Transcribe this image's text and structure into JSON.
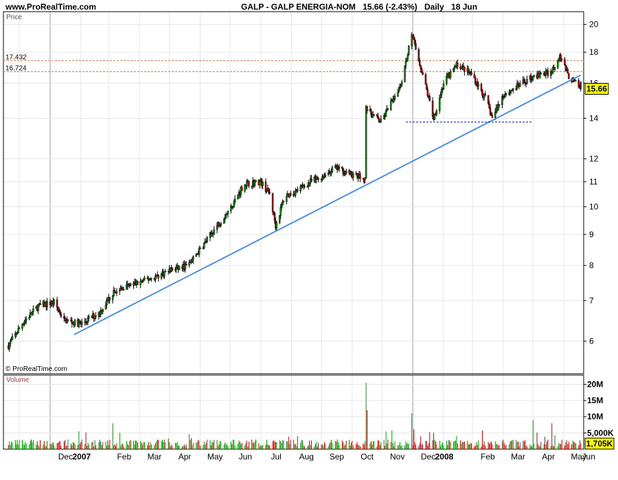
{
  "header": {
    "site": "www.ProRealTime.com",
    "symbol": "GALP - GALP ENERGIA-NOM",
    "quote": "15.66 (-2.43%)",
    "period": "Daily",
    "date": "18 Jun"
  },
  "price_panel": {
    "label": "Price",
    "copyright": "© ProRealTime.com",
    "ref_levels": [
      {
        "label": "17.432",
        "value": 17.432
      },
      {
        "label": "16.724",
        "value": 16.724
      }
    ],
    "last_price_label": "15.66",
    "y_ticks": [
      6,
      7,
      8,
      9,
      10,
      11,
      12,
      14,
      16,
      18,
      20
    ],
    "y_tick_labels": [
      "6",
      "7",
      "8",
      "9",
      "10",
      "11",
      "12",
      "14",
      "16",
      "18",
      "20"
    ]
  },
  "volume_panel": {
    "label": "Volume",
    "y_tick_labels": [
      "20M",
      "15M",
      "10M",
      "5,000K"
    ],
    "last_volume_label": "1,705K"
  },
  "x_axis": {
    "labels": [
      "Dec",
      "2007",
      "Feb",
      "Mar",
      "Apr",
      "May",
      "Jun",
      "Jul",
      "Aug",
      "Sep",
      "Oct",
      "Nov",
      "Dec",
      "2008",
      "Feb",
      "Mar",
      "Apr",
      "May",
      "Jun"
    ]
  },
  "colors": {
    "up": "#00a000",
    "down": "#d00000",
    "trendline": "#4a8fe6",
    "ref_line": "#e07040",
    "support": "#0000cc",
    "last_price_box": "#ffff00"
  },
  "chart_data": [
    {
      "type": "line",
      "title": "GALP - GALP ENERGIA-NOM",
      "scale": "log",
      "ylabel": "Price",
      "ylim": [
        5.3,
        21
      ],
      "date_range": [
        "2006-11-20",
        "2008-06-18"
      ],
      "series": [
        {
          "name": "GALP - GALP ENERGIA-NOM",
          "points": [
            [
              "2006-11-20",
              5.9
            ],
            [
              "2006-12-05",
              6.45
            ],
            [
              "2006-12-20",
              6.85
            ],
            [
              "2007-01-05",
              6.95
            ],
            [
              "2007-01-15",
              6.5
            ],
            [
              "2007-02-01",
              6.4
            ],
            [
              "2007-02-20",
              6.7
            ],
            [
              "2007-03-05",
              7.2
            ],
            [
              "2007-03-15",
              7.35
            ],
            [
              "2007-04-01",
              7.5
            ],
            [
              "2007-04-20",
              7.7
            ],
            [
              "2007-05-01",
              7.85
            ],
            [
              "2007-05-20",
              8.0
            ],
            [
              "2007-06-01",
              8.5
            ],
            [
              "2007-06-20",
              9.4
            ],
            [
              "2007-07-01",
              9.9
            ],
            [
              "2007-07-15",
              10.9
            ],
            [
              "2007-08-01",
              11.0
            ],
            [
              "2007-08-10",
              10.5
            ],
            [
              "2007-08-16",
              9.3
            ],
            [
              "2007-08-25",
              10.4
            ],
            [
              "2007-09-05",
              10.6
            ],
            [
              "2007-09-20",
              11.0
            ],
            [
              "2007-10-01",
              11.2
            ],
            [
              "2007-10-15",
              11.6
            ],
            [
              "2007-11-01",
              11.3
            ],
            [
              "2007-11-14",
              11.1
            ],
            [
              "2007-11-15",
              14.5
            ],
            [
              "2007-11-30",
              13.8
            ],
            [
              "2007-12-10",
              14.8
            ],
            [
              "2007-12-20",
              16.0
            ],
            [
              "2007-12-31",
              19.2
            ],
            [
              "2008-01-10",
              16.8
            ],
            [
              "2008-01-22",
              14.0
            ],
            [
              "2008-02-01",
              16.0
            ],
            [
              "2008-02-15",
              17.2
            ],
            [
              "2008-03-01",
              16.5
            ],
            [
              "2008-03-15",
              15.0
            ],
            [
              "2008-03-21",
              14.0
            ],
            [
              "2008-04-01",
              15.3
            ],
            [
              "2008-04-15",
              15.8
            ],
            [
              "2008-05-01",
              16.4
            ],
            [
              "2008-05-20",
              16.7
            ],
            [
              "2008-05-28",
              17.9
            ],
            [
              "2008-06-05",
              16.5
            ],
            [
              "2008-06-18",
              15.66
            ]
          ]
        }
      ],
      "annotations": [
        {
          "type": "trendline",
          "from": [
            "2007-01-25",
            6.15
          ],
          "to": [
            "2008-06-18",
            16.5
          ]
        },
        {
          "type": "support",
          "value": 13.8,
          "from": "2007-12-25",
          "to": "2008-04-30"
        }
      ]
    },
    {
      "type": "bar",
      "ylabel": "Volume",
      "ylim": [
        0,
        22000000
      ],
      "note": "Daily volume, mostly around 1-3M; spikes on 2007-11-15 (~20.5M), 2007-12-31 (~11M), 2007-03-05 (~8M), 2008-05-20 (~8M)",
      "spikes": [
        [
          "2007-03-05",
          8000000
        ],
        [
          "2007-11-15",
          20500000
        ],
        [
          "2007-11-16",
          12000000
        ],
        [
          "2007-12-31",
          11000000
        ],
        [
          "2008-05-01",
          9000000
        ],
        [
          "2008-05-20",
          8000000
        ]
      ],
      "last_value": 1705000
    }
  ]
}
